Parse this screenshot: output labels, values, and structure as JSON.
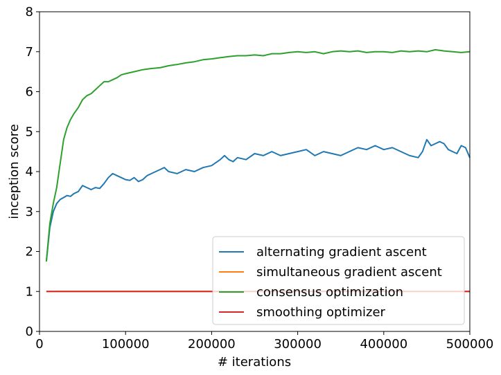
{
  "chart_data": {
    "type": "line",
    "xlabel": "# iterations",
    "ylabel": "inception score",
    "xlim": [
      0,
      500000
    ],
    "ylim": [
      0,
      8
    ],
    "xticks": [
      0,
      100000,
      200000,
      300000,
      400000,
      500000
    ],
    "xtick_labels": [
      "0",
      "100000",
      "200000",
      "300000",
      "400000",
      "500000"
    ],
    "yticks": [
      0,
      1,
      2,
      3,
      4,
      5,
      6,
      7,
      8
    ],
    "ytick_labels": [
      "0",
      "1",
      "2",
      "3",
      "4",
      "5",
      "6",
      "7",
      "8"
    ],
    "grid": false,
    "legend_position": "lower-right",
    "series": [
      {
        "name": "alternating gradient ascent",
        "color": "#1f77b4",
        "x": [
          8000,
          12000,
          16000,
          20000,
          24000,
          28000,
          32000,
          36000,
          40000,
          45000,
          50000,
          55000,
          60000,
          65000,
          70000,
          75000,
          80000,
          85000,
          90000,
          95000,
          100000,
          105000,
          110000,
          115000,
          120000,
          125000,
          130000,
          135000,
          140000,
          145000,
          150000,
          160000,
          170000,
          180000,
          190000,
          200000,
          210000,
          215000,
          220000,
          225000,
          230000,
          240000,
          250000,
          260000,
          270000,
          280000,
          290000,
          300000,
          310000,
          320000,
          330000,
          340000,
          350000,
          360000,
          370000,
          380000,
          390000,
          400000,
          410000,
          420000,
          430000,
          440000,
          445000,
          450000,
          455000,
          460000,
          465000,
          470000,
          475000,
          480000,
          485000,
          490000,
          495000,
          500000
        ],
        "values": [
          1.75,
          2.6,
          3.0,
          3.2,
          3.3,
          3.35,
          3.4,
          3.38,
          3.45,
          3.5,
          3.65,
          3.6,
          3.55,
          3.6,
          3.58,
          3.7,
          3.85,
          3.95,
          3.9,
          3.85,
          3.8,
          3.78,
          3.85,
          3.75,
          3.8,
          3.9,
          3.95,
          4.0,
          4.05,
          4.1,
          4.0,
          3.95,
          4.05,
          4.0,
          4.1,
          4.15,
          4.3,
          4.4,
          4.3,
          4.25,
          4.35,
          4.3,
          4.45,
          4.4,
          4.5,
          4.4,
          4.45,
          4.5,
          4.55,
          4.4,
          4.5,
          4.45,
          4.4,
          4.5,
          4.6,
          4.55,
          4.65,
          4.55,
          4.6,
          4.5,
          4.4,
          4.35,
          4.5,
          4.8,
          4.65,
          4.7,
          4.75,
          4.7,
          4.55,
          4.5,
          4.45,
          4.65,
          4.6,
          4.35
        ]
      },
      {
        "name": "simultaneous gradient ascent",
        "color": "#ff7f0e",
        "x": [
          8000,
          500000
        ],
        "values": [
          1.0,
          1.0
        ]
      },
      {
        "name": "consensus optimization",
        "color": "#2ca02c",
        "x": [
          8000,
          12000,
          16000,
          20000,
          24000,
          28000,
          32000,
          36000,
          40000,
          45000,
          50000,
          55000,
          60000,
          65000,
          70000,
          75000,
          80000,
          85000,
          90000,
          95000,
          100000,
          110000,
          120000,
          130000,
          140000,
          150000,
          160000,
          170000,
          180000,
          190000,
          200000,
          210000,
          220000,
          230000,
          240000,
          250000,
          260000,
          270000,
          280000,
          290000,
          300000,
          310000,
          320000,
          330000,
          340000,
          350000,
          360000,
          370000,
          380000,
          390000,
          400000,
          410000,
          420000,
          430000,
          440000,
          450000,
          460000,
          470000,
          480000,
          490000,
          500000
        ],
        "values": [
          1.75,
          2.7,
          3.2,
          3.6,
          4.2,
          4.8,
          5.1,
          5.3,
          5.45,
          5.6,
          5.8,
          5.9,
          5.95,
          6.05,
          6.15,
          6.25,
          6.25,
          6.3,
          6.35,
          6.42,
          6.45,
          6.5,
          6.55,
          6.58,
          6.6,
          6.65,
          6.68,
          6.72,
          6.75,
          6.8,
          6.82,
          6.85,
          6.88,
          6.9,
          6.9,
          6.92,
          6.9,
          6.95,
          6.95,
          6.98,
          7.0,
          6.98,
          7.0,
          6.95,
          7.0,
          7.02,
          7.0,
          7.02,
          6.98,
          7.0,
          7.0,
          6.98,
          7.02,
          7.0,
          7.02,
          7.0,
          7.05,
          7.02,
          7.0,
          6.98,
          7.0
        ]
      },
      {
        "name": "smoothing optimizer",
        "color": "#d62728",
        "x": [
          8000,
          500000
        ],
        "values": [
          1.0,
          1.0
        ]
      }
    ]
  }
}
